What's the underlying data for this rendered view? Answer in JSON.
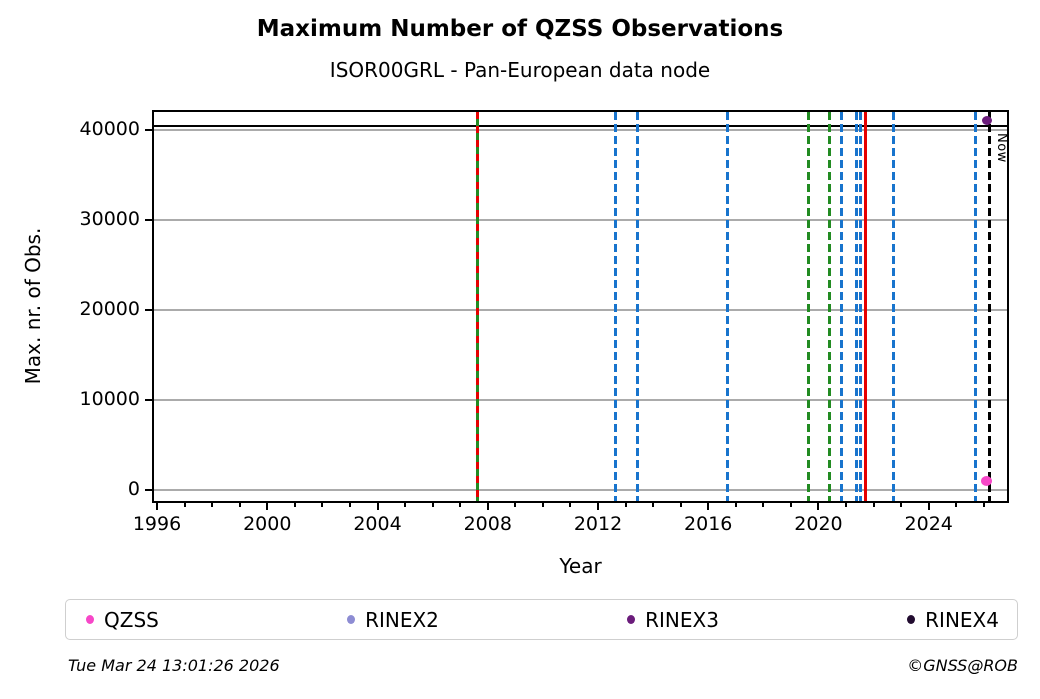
{
  "header": {
    "title": "Maximum Number of QZSS Observations",
    "subtitle": "ISOR00GRL - Pan-European data node"
  },
  "footer": {
    "timestamp": "Tue Mar 24 13:01:26 2026",
    "credit": "©GNSS@ROB"
  },
  "chart_data": {
    "type": "scatter",
    "title": "Maximum Number of QZSS Observations",
    "subtitle": "ISOR00GRL - Pan-European data node",
    "xlabel": "Year",
    "ylabel": "Max. nr. of Obs.",
    "xlim": [
      1995.89,
      2026.84
    ],
    "ylim": [
      -1200,
      42000
    ],
    "x_major_ticks": [
      1996,
      2000,
      2004,
      2008,
      2012,
      2016,
      2020,
      2024
    ],
    "x_minor_ticks_every_year_from": 1996,
    "x_minor_ticks_every_year_to": 2026,
    "y_ticks": [
      0,
      10000,
      20000,
      30000,
      40000
    ],
    "grid": "horizontal",
    "grid_color": "#ababab",
    "hlines": [
      {
        "y": 40500,
        "color": "#000000",
        "style": "solid"
      }
    ],
    "vlines": [
      {
        "x": 2007.63,
        "color": "#228B22",
        "style": "solid"
      },
      {
        "x": 2007.63,
        "color": "#E60000",
        "style": "dashed-red-over-green"
      },
      {
        "x": 2012.65,
        "color": "#1874CD",
        "style": "dashed"
      },
      {
        "x": 2013.44,
        "color": "#1874CD",
        "style": "dashed"
      },
      {
        "x": 2016.69,
        "color": "#1874CD",
        "style": "dashed"
      },
      {
        "x": 2019.65,
        "color": "#228B22",
        "style": "dashed"
      },
      {
        "x": 2020.41,
        "color": "#228B22",
        "style": "dashed"
      },
      {
        "x": 2020.84,
        "color": "#1874CD",
        "style": "dashed"
      },
      {
        "x": 2021.39,
        "color": "#1874CD",
        "style": "dashed"
      },
      {
        "x": 2021.53,
        "color": "#1874CD",
        "style": "dashed"
      },
      {
        "x": 2021.71,
        "color": "#E60000",
        "style": "solid"
      },
      {
        "x": 2022.72,
        "color": "#1874CD",
        "style": "dashed"
      },
      {
        "x": 2025.68,
        "color": "#1874CD",
        "style": "dashed"
      },
      {
        "x": 2026.22,
        "color": "#000000",
        "style": "dashed",
        "label": "Now"
      }
    ],
    "now_label": "Now",
    "points": [
      {
        "series": "RINEX3",
        "x": 2026.1,
        "y": 41000,
        "color": "#6B1C7B",
        "size": 10
      },
      {
        "series": "QZSS",
        "x": 2026.1,
        "y": 1000,
        "color": "#F747C8",
        "size": 11
      }
    ],
    "legend": {
      "position": "bottom",
      "items": [
        {
          "label": "QZSS",
          "color": "#F747C8"
        },
        {
          "label": "RINEX2",
          "color": "#8D8CD3"
        },
        {
          "label": "RINEX3",
          "color": "#6B1C7B"
        },
        {
          "label": "RINEX4",
          "color": "#220C30"
        }
      ]
    }
  }
}
